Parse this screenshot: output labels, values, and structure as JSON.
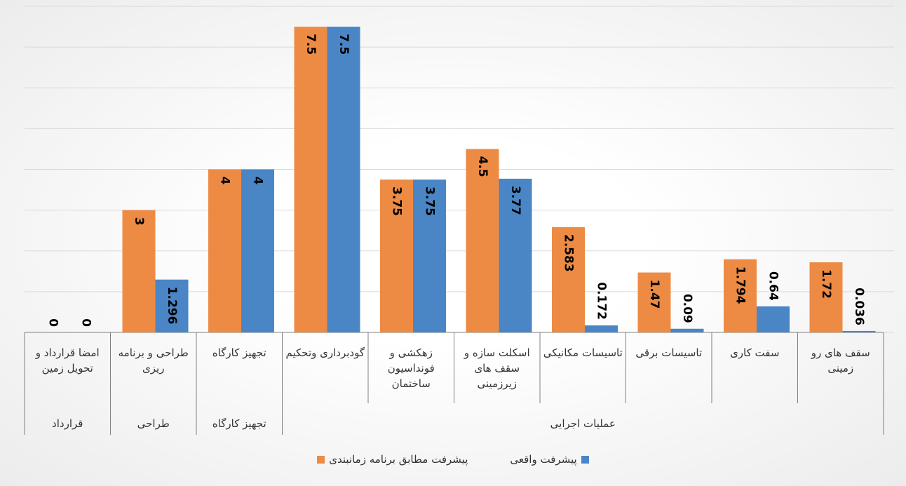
{
  "chart_data": {
    "type": "bar",
    "categories": [
      "امضا قرارداد و تحویل زمین",
      "طراحی و برنامه ریزی",
      "تجهیز کارگاه",
      "گودبرداری وتحکیم",
      "زهکشی و فونداسیون ساختمان",
      "اسکلت سازه و سقف های زیرزمینی",
      "تاسیسات مکانیکی",
      "تاسیسات برقی",
      "سفت کاری",
      "سقف های رو زمینی"
    ],
    "groups": [
      "قرارداد",
      "طراحی",
      "تجهیز کارگاه",
      "عملیات اجرایی"
    ],
    "series": [
      {
        "name": "پیشرفت مطابق برنامه زمانبندی",
        "color": "#ed8b45",
        "values": [
          0,
          3,
          4,
          7.5,
          3.75,
          4.5,
          2.583,
          1.47,
          1.794,
          1.72
        ]
      },
      {
        "name": "پیشرفت واقعی",
        "color": "#4a86c5",
        "values": [
          0,
          1.296,
          4,
          7.5,
          3.75,
          3.77,
          0.172,
          0.09,
          0.64,
          0.036
        ]
      }
    ],
    "ylim": [
      0,
      8
    ],
    "yticks": [
      0,
      1,
      2,
      3,
      4,
      5,
      6,
      7,
      8
    ],
    "grid": true
  }
}
